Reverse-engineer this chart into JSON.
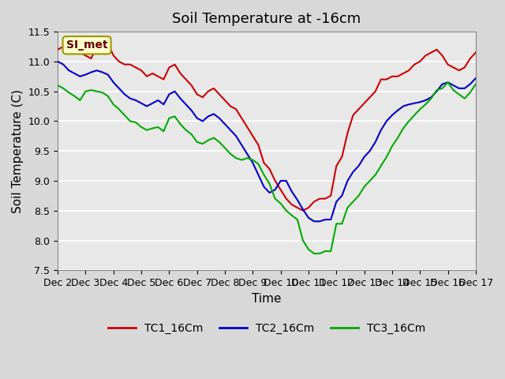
{
  "title": "Soil Temperature at -16cm",
  "xlabel": "Time",
  "ylabel": "Soil Temperature (C)",
  "ylim": [
    7.5,
    11.5
  ],
  "xlim": [
    0,
    15
  ],
  "xtick_labels": [
    "Dec 2",
    "Dec 3",
    "Dec 4",
    "Dec 5",
    "Dec 6",
    "Dec 7",
    "Dec 8",
    "Dec 9",
    "Dec 10",
    "Dec 11",
    "Dec 12",
    "Dec 13",
    "Dec 14",
    "Dec 15",
    "Dec 16",
    "Dec 17"
  ],
  "ytick_values": [
    7.5,
    8.0,
    8.5,
    9.0,
    9.5,
    10.0,
    10.5,
    11.0,
    11.5
  ],
  "bg_color": "#e8e8e8",
  "plot_bg_color": "#e8e8e8",
  "grid_color": "#ffffff",
  "annotation_text": "SI_met",
  "annotation_bg": "#ffffcc",
  "annotation_border": "#999900",
  "legend_entries": [
    "TC1_16Cm",
    "TC2_16Cm",
    "TC3_16Cm"
  ],
  "line_colors": [
    "#cc0000",
    "#0000cc",
    "#00aa00"
  ],
  "title_fontsize": 13,
  "axis_fontsize": 11,
  "tick_fontsize": 9,
  "legend_fontsize": 10,
  "tc1_x": [
    0,
    0.2,
    0.4,
    0.6,
    0.8,
    1.0,
    1.2,
    1.4,
    1.6,
    1.8,
    2.0,
    2.2,
    2.4,
    2.6,
    2.8,
    3.0,
    3.2,
    3.4,
    3.6,
    3.8,
    4.0,
    4.2,
    4.4,
    4.6,
    4.8,
    5.0,
    5.2,
    5.4,
    5.6,
    5.8,
    6.0,
    6.2,
    6.4,
    6.6,
    6.8,
    7.0,
    7.2,
    7.4,
    7.6,
    7.8,
    8.0,
    8.2,
    8.4,
    8.6,
    8.8,
    9.0,
    9.2,
    9.4,
    9.6,
    9.8,
    10.0,
    10.2,
    10.4,
    10.6,
    10.8,
    11.0,
    11.2,
    11.4,
    11.6,
    11.8,
    12.0,
    12.2,
    12.4,
    12.6,
    12.8,
    13.0,
    13.2,
    13.4,
    13.6,
    13.8,
    14.0,
    14.2,
    14.4,
    14.6,
    14.8,
    15.0
  ],
  "tc1_y": [
    11.2,
    11.25,
    11.3,
    11.25,
    11.15,
    11.1,
    11.05,
    11.25,
    11.35,
    11.3,
    11.1,
    11.0,
    10.95,
    10.95,
    10.9,
    10.85,
    10.75,
    10.8,
    10.75,
    10.7,
    10.9,
    10.95,
    10.8,
    10.7,
    10.6,
    10.45,
    10.4,
    10.5,
    10.55,
    10.45,
    10.35,
    10.25,
    10.2,
    10.05,
    9.9,
    9.75,
    9.6,
    9.3,
    9.2,
    9.0,
    8.85,
    8.7,
    8.6,
    8.55,
    8.5,
    8.55,
    8.65,
    8.7,
    8.7,
    8.75,
    9.25,
    9.4,
    9.8,
    10.1,
    10.2,
    10.3,
    10.4,
    10.5,
    10.7,
    10.7,
    10.75,
    10.75,
    10.8,
    10.85,
    10.95,
    11.0,
    11.1,
    11.15,
    11.2,
    11.1,
    10.95,
    10.9,
    10.85,
    10.9,
    11.05,
    11.15
  ],
  "tc2_x": [
    0,
    0.2,
    0.4,
    0.6,
    0.8,
    1.0,
    1.2,
    1.4,
    1.6,
    1.8,
    2.0,
    2.2,
    2.4,
    2.6,
    2.8,
    3.0,
    3.2,
    3.4,
    3.6,
    3.8,
    4.0,
    4.2,
    4.4,
    4.6,
    4.8,
    5.0,
    5.2,
    5.4,
    5.6,
    5.8,
    6.0,
    6.2,
    6.4,
    6.6,
    6.8,
    7.0,
    7.2,
    7.4,
    7.6,
    7.8,
    8.0,
    8.2,
    8.4,
    8.6,
    8.8,
    9.0,
    9.2,
    9.4,
    9.6,
    9.8,
    10.0,
    10.2,
    10.4,
    10.6,
    10.8,
    11.0,
    11.2,
    11.4,
    11.6,
    11.8,
    12.0,
    12.2,
    12.4,
    12.6,
    12.8,
    13.0,
    13.2,
    13.4,
    13.6,
    13.8,
    14.0,
    14.2,
    14.4,
    14.6,
    14.8,
    15.0
  ],
  "tc2_y": [
    11.0,
    10.95,
    10.85,
    10.8,
    10.75,
    10.78,
    10.82,
    10.85,
    10.82,
    10.78,
    10.65,
    10.55,
    10.45,
    10.38,
    10.35,
    10.3,
    10.25,
    10.3,
    10.35,
    10.28,
    10.45,
    10.5,
    10.38,
    10.28,
    10.18,
    10.05,
    10.0,
    10.08,
    10.12,
    10.05,
    9.95,
    9.85,
    9.75,
    9.6,
    9.45,
    9.3,
    9.1,
    8.9,
    8.8,
    8.85,
    9.0,
    9.0,
    8.82,
    8.68,
    8.52,
    8.38,
    8.32,
    8.32,
    8.35,
    8.35,
    8.65,
    8.75,
    9.0,
    9.15,
    9.25,
    9.4,
    9.5,
    9.65,
    9.85,
    10.0,
    10.1,
    10.18,
    10.25,
    10.28,
    10.3,
    10.32,
    10.35,
    10.4,
    10.5,
    10.62,
    10.65,
    10.6,
    10.55,
    10.55,
    10.62,
    10.72
  ],
  "tc3_x": [
    0,
    0.2,
    0.4,
    0.6,
    0.8,
    1.0,
    1.2,
    1.4,
    1.6,
    1.8,
    2.0,
    2.2,
    2.4,
    2.6,
    2.8,
    3.0,
    3.2,
    3.4,
    3.6,
    3.8,
    4.0,
    4.2,
    4.4,
    4.6,
    4.8,
    5.0,
    5.2,
    5.4,
    5.6,
    5.8,
    6.0,
    6.2,
    6.4,
    6.6,
    6.8,
    7.0,
    7.2,
    7.4,
    7.6,
    7.8,
    8.0,
    8.2,
    8.4,
    8.6,
    8.8,
    9.0,
    9.2,
    9.4,
    9.6,
    9.8,
    10.0,
    10.2,
    10.4,
    10.6,
    10.8,
    11.0,
    11.2,
    11.4,
    11.6,
    11.8,
    12.0,
    12.2,
    12.4,
    12.6,
    12.8,
    13.0,
    13.2,
    13.4,
    13.6,
    13.8,
    14.0,
    14.2,
    14.4,
    14.6,
    14.8,
    15.0
  ],
  "tc3_y": [
    10.6,
    10.55,
    10.48,
    10.42,
    10.35,
    10.5,
    10.52,
    10.5,
    10.48,
    10.42,
    10.28,
    10.2,
    10.1,
    10.0,
    9.98,
    9.9,
    9.85,
    9.88,
    9.9,
    9.83,
    10.05,
    10.08,
    9.95,
    9.85,
    9.78,
    9.65,
    9.62,
    9.68,
    9.72,
    9.65,
    9.55,
    9.45,
    9.38,
    9.35,
    9.38,
    9.35,
    9.28,
    9.1,
    8.95,
    8.7,
    8.62,
    8.5,
    8.42,
    8.35,
    8.0,
    7.85,
    7.78,
    7.78,
    7.82,
    7.82,
    8.28,
    8.28,
    8.55,
    8.65,
    8.75,
    8.9,
    9.0,
    9.1,
    9.25,
    9.4,
    9.58,
    9.72,
    9.88,
    10.0,
    10.1,
    10.2,
    10.28,
    10.38,
    10.52,
    10.55,
    10.65,
    10.52,
    10.45,
    10.38,
    10.48,
    10.62
  ]
}
